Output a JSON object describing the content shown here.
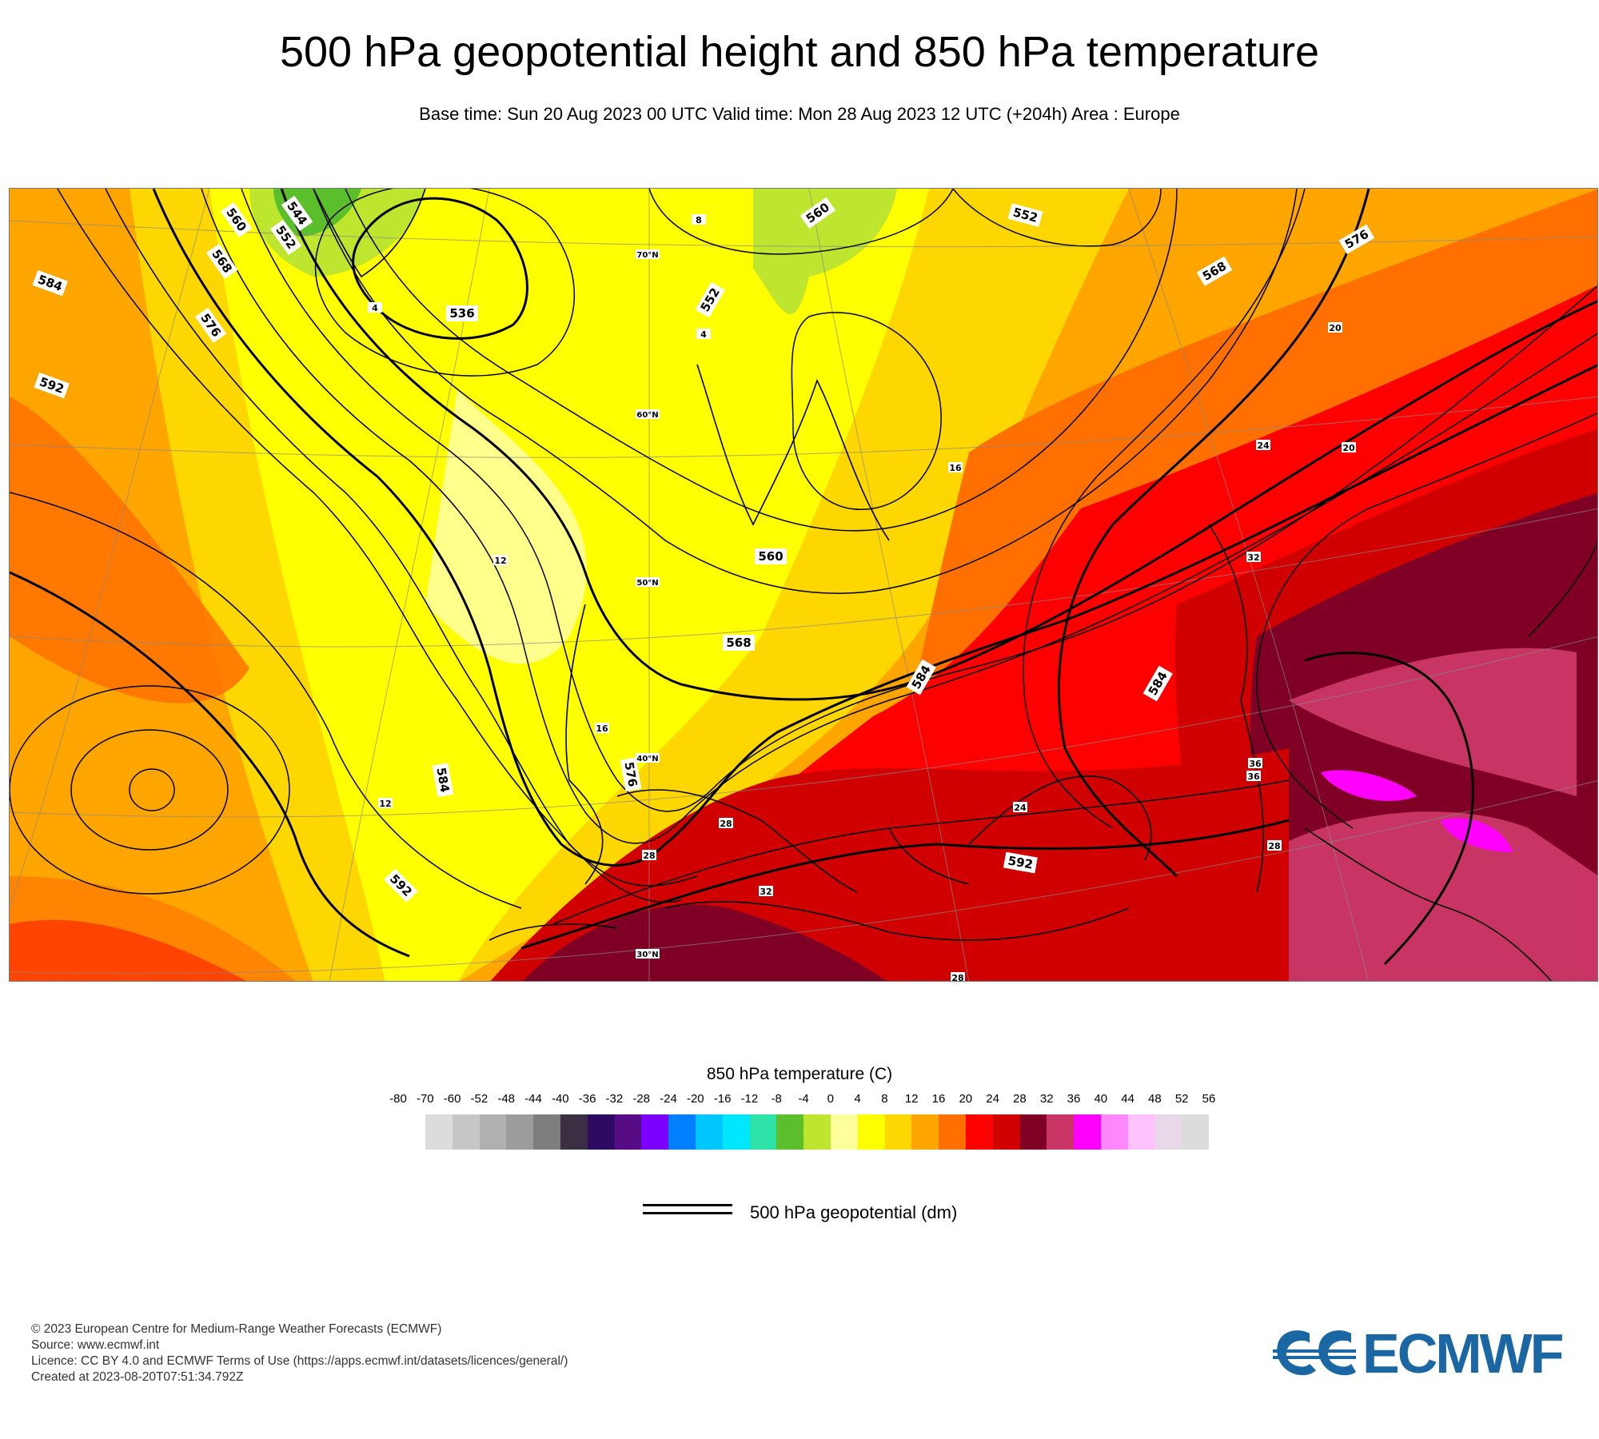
{
  "header": {
    "title": "500 hPa geopotential height and 850 hPa temperature",
    "subtitle": "Base time: Sun 20 Aug 2023 00 UTC Valid time: Mon 28 Aug 2023 12 UTC (+204h) Area : Europe"
  },
  "map": {
    "contour_labels": [
      "584",
      "592",
      "584",
      "576",
      "568",
      "560",
      "552",
      "544",
      "536",
      "552",
      "560",
      "552",
      "576",
      "568",
      "560",
      "568",
      "576",
      "584",
      "592",
      "584",
      "592"
    ],
    "temperature_labels": [
      "8",
      "4",
      "4",
      "12",
      "16",
      "12",
      "16",
      "20",
      "24",
      "20",
      "32",
      "36",
      "28",
      "28",
      "32",
      "36",
      "24",
      "28",
      "28"
    ],
    "latitude_labels": [
      "70°N",
      "60°N",
      "50°N",
      "40°N",
      "30°N"
    ]
  },
  "colorbar": {
    "title": "850 hPa temperature (C)",
    "ticks": [
      "-80",
      "-70",
      "-60",
      "-52",
      "-48",
      "-44",
      "-40",
      "-36",
      "-32",
      "-28",
      "-24",
      "-20",
      "-16",
      "-12",
      "-8",
      "-4",
      "0",
      "4",
      "8",
      "12",
      "16",
      "20",
      "24",
      "28",
      "32",
      "36",
      "40",
      "44",
      "48",
      "52",
      "56"
    ],
    "colors": [
      "#dcdcdc",
      "#c6c6c6",
      "#b0b0b0",
      "#9c9c9c",
      "#7e7e7e",
      "#3d2f43",
      "#2e0a63",
      "#570c85",
      "#7a00ff",
      "#0080ff",
      "#00c6ff",
      "#00e8ff",
      "#2ee3a7",
      "#5bbf2b",
      "#bfe62f",
      "#ffff9b",
      "#ffff00",
      "#ffd700",
      "#ffa500",
      "#ff7000",
      "#ff0000",
      "#d00000",
      "#800025",
      "#c83463",
      "#ff00ff",
      "#ff88ff",
      "#ffc4ff",
      "#e8d8e8",
      "#dcdcdc"
    ]
  },
  "legend": {
    "label": "500 hPa geopotential (dm)"
  },
  "footer": {
    "lines": [
      "© 2023 European Centre for Medium-Range Weather Forecasts (ECMWF)",
      "Source: www.ecmwf.int",
      "Licence: CC BY 4.0 and ECMWF Terms of Use (https://apps.ecmwf.int/datasets/licences/general/)",
      "Created at 2023-08-20T07:51:34.792Z"
    ],
    "logo_text": "ECMWF"
  }
}
